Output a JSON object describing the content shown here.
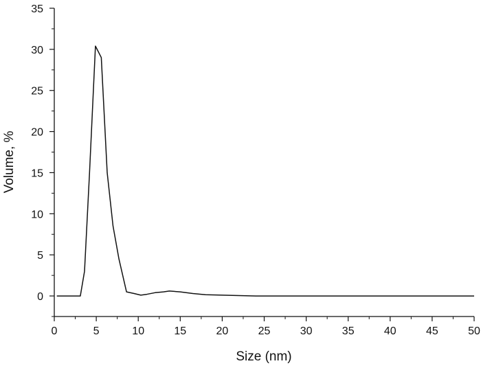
{
  "chart_data": {
    "type": "line",
    "title": "",
    "xlabel": "Size (nm)",
    "ylabel": "Volume, %",
    "xlim": [
      0,
      50
    ],
    "ylim": [
      -2.5,
      35
    ],
    "x_ticks": [
      0,
      5,
      10,
      15,
      20,
      25,
      30,
      35,
      40,
      45,
      50
    ],
    "y_ticks": [
      0,
      5,
      10,
      15,
      20,
      25,
      30,
      35
    ],
    "grid": false,
    "legend": "none",
    "line_color": "#111111",
    "series": [
      {
        "x": [
          0.3,
          3.1,
          3.6,
          4.2,
          4.9,
          5.6,
          6.3,
          7.0,
          7.7,
          8.6,
          9.5,
          10.3,
          11.0,
          12.0,
          13.0,
          13.7,
          15.0,
          16.5,
          18.0,
          20.0,
          22.0,
          24.0,
          30.0,
          40.0,
          50.0
        ],
        "y": [
          0,
          0,
          3.0,
          15.0,
          30.4,
          29.0,
          15.0,
          8.5,
          4.5,
          0.5,
          0.3,
          0.1,
          0.2,
          0.4,
          0.5,
          0.6,
          0.5,
          0.3,
          0.15,
          0.1,
          0.05,
          0,
          0,
          0,
          0
        ]
      }
    ]
  }
}
